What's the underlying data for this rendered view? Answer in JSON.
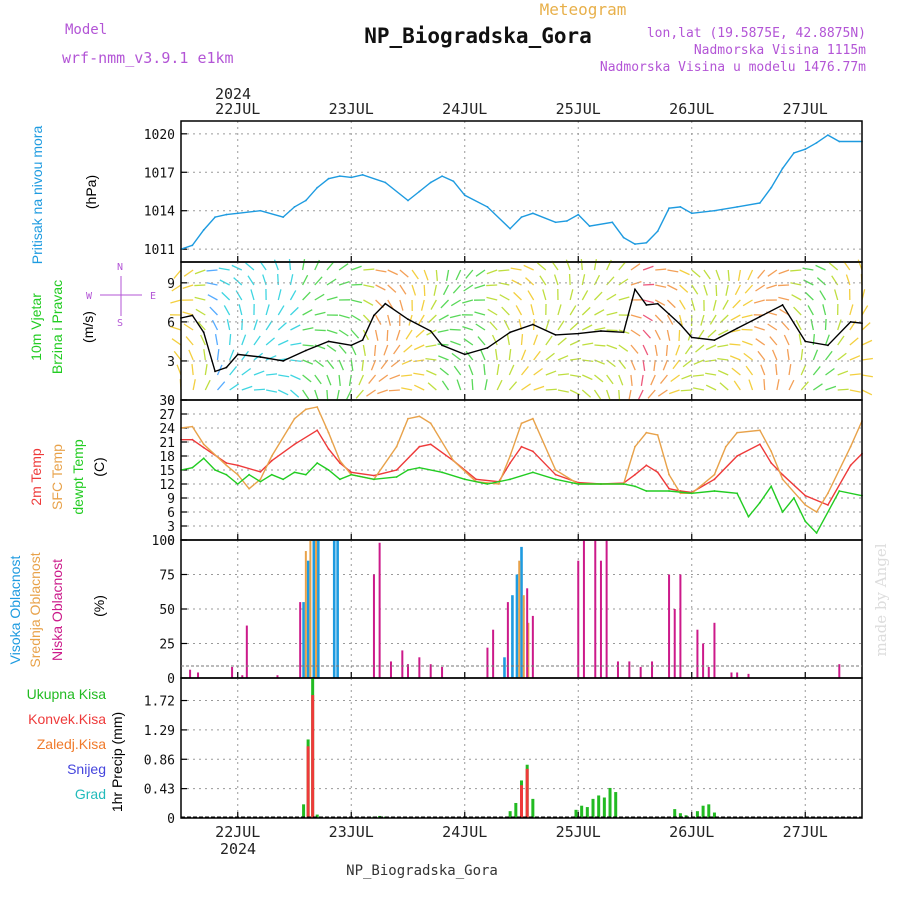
{
  "header": {
    "model_label": "Model",
    "model_name": "wrf-nmm_v3.9.1 e1km",
    "title": "Meteogram",
    "station": "NP_Biogradska_Gora",
    "coords": "lon,lat (19.5875E, 42.8875N)",
    "elevation": "Nadmorska Visina 1115m",
    "model_elevation": "Nadmorska Visina u modelu 1476.77m",
    "credit": "made by Angel",
    "footer_station": "NP_Biogradska_Gora"
  },
  "colors": {
    "pressure": "#1e9be0",
    "temp2m": "#ee3a3a",
    "sfc": "#e8a24a",
    "dew": "#22cc22",
    "high_cloud": "#1e9be0",
    "mid_cloud": "#e8a24a",
    "low_cloud": "#cc1a8a",
    "total_precip": "#22bb22",
    "conv_precip": "#ee3a3a",
    "freezing": "#f07a2a",
    "snow": "#4444dd",
    "hail": "#22bbbb",
    "header_purple": "#b355d6",
    "title_orange": "#e8b04a"
  },
  "chart_data": [
    {
      "type": "line",
      "panel": "pressure",
      "ylabel_lines": [
        "Pritisak na nivou mora",
        "(hPa)"
      ],
      "ylim": [
        1010,
        1021
      ],
      "yticks": [
        1011,
        1014,
        1017,
        1020
      ],
      "x_axis": {
        "year": "2024",
        "ticks": [
          "22JUL",
          "23JUL",
          "24JUL",
          "25JUL",
          "26JUL",
          "27JUL"
        ],
        "tick_day": [
          22,
          23,
          24,
          25,
          26,
          27
        ],
        "range_days": [
          21.5,
          27.5
        ]
      },
      "grid": true,
      "series": [
        {
          "color_key": "pressure",
          "x": [
            21.5,
            21.6,
            21.7,
            21.8,
            21.9,
            22.0,
            22.2,
            22.4,
            22.5,
            22.6,
            22.7,
            22.8,
            22.9,
            23.0,
            23.1,
            23.3,
            23.5,
            23.6,
            23.7,
            23.8,
            23.9,
            24.0,
            24.2,
            24.4,
            24.5,
            24.6,
            24.8,
            24.9,
            25.0,
            25.1,
            25.3,
            25.4,
            25.5,
            25.6,
            25.7,
            25.8,
            25.9,
            26.0,
            26.2,
            26.4,
            26.6,
            26.7,
            26.8,
            26.9,
            27.0,
            27.1,
            27.2,
            27.3,
            27.5
          ],
          "y": [
            1011,
            1011.3,
            1012.5,
            1013.5,
            1013.7,
            1013.8,
            1014,
            1013.5,
            1014.3,
            1014.8,
            1015.8,
            1016.5,
            1016.7,
            1016.6,
            1016.8,
            1016.2,
            1014.8,
            1015.5,
            1016.2,
            1016.7,
            1016.3,
            1015.2,
            1014.3,
            1012.6,
            1013.5,
            1013.8,
            1013.1,
            1013.2,
            1013.7,
            1012.8,
            1013.1,
            1011.9,
            1011.4,
            1011.5,
            1012.4,
            1014.2,
            1014.3,
            1013.8,
            1014,
            1014.3,
            1014.6,
            1015.8,
            1017.3,
            1018.5,
            1018.8,
            1019.3,
            1019.9,
            1019.4,
            1019.4
          ]
        }
      ]
    },
    {
      "type": "line",
      "panel": "wind",
      "ylabel_lines": [
        "10m Vjetar",
        "Brzina i Pravac",
        "(m/s)"
      ],
      "compass": [
        "N",
        "W",
        "E",
        "S"
      ],
      "ylim": [
        0,
        10.6
      ],
      "yticks": [
        0,
        3,
        6,
        9
      ],
      "grid": true,
      "series": [
        {
          "name": "",
          "color": "#000000",
          "x": [
            21.5,
            21.6,
            21.7,
            21.8,
            21.9,
            22.0,
            22.2,
            22.4,
            22.6,
            22.8,
            23.0,
            23.1,
            23.2,
            23.3,
            23.5,
            23.7,
            23.8,
            24.0,
            24.2,
            24.4,
            24.6,
            24.8,
            25.0,
            25.2,
            25.4,
            25.5,
            25.6,
            25.7,
            25.8,
            25.9,
            26.0,
            26.2,
            26.4,
            26.6,
            26.8,
            27.0,
            27.2,
            27.4,
            27.5
          ],
          "y": [
            6.3,
            6.5,
            5.2,
            2.2,
            2.5,
            3.5,
            3.3,
            3.0,
            3.8,
            4.5,
            4.2,
            4.6,
            6.5,
            7.4,
            6.2,
            5.3,
            4.2,
            3.5,
            4.0,
            5.2,
            5.8,
            5.0,
            5.1,
            5.3,
            5.2,
            8.5,
            7.3,
            7.4,
            6.6,
            5.8,
            4.8,
            4.6,
            5.5,
            6.4,
            7.3,
            4.5,
            4.2,
            6.0,
            5.9
          ]
        }
      ]
    },
    {
      "type": "line",
      "panel": "temperature",
      "ylabel_lines": [
        "2m Temp",
        "SFC Temp",
        "dewpt Temp",
        "(C)"
      ],
      "ylim": [
        0,
        30
      ],
      "yticks": [
        0,
        3,
        6,
        9,
        12,
        15,
        18,
        21,
        24,
        27,
        30
      ],
      "grid": true,
      "series": [
        {
          "name": "2m Temp",
          "color_key": "temp2m",
          "x": [
            21.5,
            21.6,
            21.7,
            21.9,
            22.0,
            22.2,
            22.3,
            22.5,
            22.7,
            22.8,
            22.9,
            23.0,
            23.2,
            23.4,
            23.6,
            23.7,
            23.9,
            24.1,
            24.3,
            24.4,
            24.5,
            24.6,
            24.8,
            25.0,
            25.2,
            25.4,
            25.5,
            25.6,
            25.7,
            25.8,
            25.9,
            26.0,
            26.2,
            26.4,
            26.6,
            26.7,
            26.8,
            27.0,
            27.2,
            27.4,
            27.5
          ],
          "y": [
            21.5,
            21.5,
            19.8,
            16.5,
            16.0,
            14.6,
            17.0,
            20.5,
            23.5,
            19.5,
            16.5,
            14.5,
            13.8,
            15.0,
            20.0,
            20.5,
            17.0,
            13.0,
            12.5,
            16.5,
            20.0,
            19.0,
            14.0,
            12.3,
            12.0,
            12.2,
            14.0,
            16.0,
            14.5,
            11.0,
            10.5,
            10.2,
            13.0,
            18.0,
            20.5,
            16.5,
            14.0,
            9.5,
            7.5,
            16.0,
            18.5
          ]
        },
        {
          "name": "SFC Temp",
          "color_key": "sfc",
          "x": [
            21.5,
            21.6,
            21.7,
            21.9,
            22.0,
            22.1,
            22.2,
            22.3,
            22.5,
            22.6,
            22.7,
            22.8,
            22.9,
            23.0,
            23.2,
            23.4,
            23.5,
            23.6,
            23.7,
            23.9,
            24.1,
            24.3,
            24.4,
            24.5,
            24.6,
            24.8,
            25.0,
            25.2,
            25.4,
            25.5,
            25.6,
            25.7,
            25.8,
            25.9,
            26.0,
            26.2,
            26.3,
            26.4,
            26.6,
            26.7,
            26.8,
            27.0,
            27.1,
            27.2,
            27.4,
            27.5
          ],
          "y": [
            24.0,
            24.3,
            20.5,
            16.0,
            14.0,
            11.0,
            13.0,
            18.0,
            26.0,
            28.0,
            28.5,
            23.0,
            17.0,
            14.0,
            13.0,
            20.0,
            26.0,
            26.5,
            25.0,
            17.0,
            12.5,
            12.0,
            18.0,
            25.0,
            26.0,
            15.0,
            12.0,
            12.0,
            12.0,
            20.0,
            23.0,
            22.5,
            14.0,
            10.0,
            10.0,
            14.0,
            20.0,
            23.0,
            23.5,
            19.0,
            13.0,
            7.5,
            6.0,
            10.0,
            20.0,
            25.5
          ]
        },
        {
          "name": "dewpt Temp",
          "color_key": "dew",
          "x": [
            21.5,
            21.6,
            21.7,
            21.8,
            21.9,
            22.0,
            22.1,
            22.2,
            22.3,
            22.4,
            22.5,
            22.6,
            22.7,
            22.8,
            22.9,
            23.0,
            23.2,
            23.4,
            23.5,
            23.6,
            23.8,
            24.0,
            24.2,
            24.4,
            24.6,
            24.8,
            25.0,
            25.2,
            25.4,
            25.5,
            25.6,
            25.8,
            26.0,
            26.2,
            26.4,
            26.5,
            26.6,
            26.7,
            26.8,
            26.9,
            27.0,
            27.1,
            27.3,
            27.5
          ],
          "y": [
            15.0,
            15.5,
            17.5,
            15.0,
            14.0,
            12.0,
            14.0,
            12.5,
            14.0,
            13.0,
            14.5,
            14.0,
            16.5,
            15.0,
            13.0,
            14.0,
            13.0,
            13.5,
            15.0,
            15.5,
            14.5,
            13.0,
            12.0,
            13.0,
            14.5,
            13.0,
            12.0,
            12.0,
            12.0,
            11.5,
            10.5,
            10.5,
            10.0,
            10.5,
            10.0,
            5.0,
            8.0,
            11.5,
            6.0,
            9.0,
            4.0,
            1.5,
            10.5,
            9.5
          ]
        }
      ]
    },
    {
      "type": "bar",
      "panel": "cloud",
      "ylabel_lines": [
        "Visoka Oblacnost",
        "Srednja Oblacnost",
        "Niska Oblacnost",
        "(%)"
      ],
      "ylim": [
        0,
        100
      ],
      "yticks": [
        0,
        25,
        50,
        75,
        100
      ],
      "grid": true,
      "series": [
        {
          "name": "Visoka Oblacnost",
          "color_key": "high_cloud",
          "x": [
            22.58,
            22.62,
            22.67,
            22.71,
            22.85,
            22.88,
            24.35,
            24.42,
            24.46,
            24.5
          ],
          "values": [
            55,
            85,
            100,
            100,
            100,
            100,
            15,
            60,
            75,
            95
          ]
        },
        {
          "name": "Srednja Oblacnost",
          "color_key": "mid_cloud",
          "x": [
            22.6,
            22.64,
            22.69,
            24.48,
            24.52,
            24.56
          ],
          "values": [
            92,
            100,
            100,
            85,
            60,
            40
          ]
        },
        {
          "name": "Niska Oblacnost",
          "color_key": "low_cloud",
          "x": [
            21.58,
            21.65,
            21.95,
            22.04,
            22.08,
            22.35,
            22.55,
            23.2,
            23.25,
            23.35,
            23.45,
            23.5,
            23.6,
            23.7,
            23.8,
            24.2,
            24.25,
            24.38,
            24.55,
            24.6,
            25.0,
            25.05,
            25.15,
            25.2,
            25.25,
            25.35,
            25.45,
            25.55,
            25.65,
            25.8,
            25.85,
            25.9,
            26.05,
            26.1,
            26.15,
            26.2,
            26.35,
            26.4,
            26.5,
            27.3
          ],
          "values": [
            6,
            4,
            8,
            2,
            38,
            2,
            55,
            75,
            98,
            12,
            20,
            10,
            15,
            10,
            8,
            22,
            35,
            55,
            65,
            45,
            85,
            100,
            100,
            85,
            100,
            12,
            12,
            8,
            12,
            75,
            50,
            75,
            35,
            25,
            8,
            40,
            4,
            4,
            3,
            10
          ]
        }
      ]
    },
    {
      "type": "bar",
      "panel": "precip",
      "ylabel_lines": [
        "1hr Precip (mm)"
      ],
      "legend": [
        "Ukupna Kisa",
        "Konvek.Kisa",
        "Zaledj.Kisa",
        "Snijeg",
        "Grad"
      ],
      "ylim": [
        0,
        2.05
      ],
      "yticks": [
        0,
        0.43,
        0.86,
        1.29,
        1.72
      ],
      "grid": true,
      "series": [
        {
          "name": "Ukupna Kisa",
          "color_key": "total_precip",
          "x": [
            22.58,
            22.62,
            22.66,
            22.7,
            23.2,
            23.25,
            23.3,
            24.4,
            24.45,
            24.5,
            24.55,
            24.6,
            24.98,
            25.03,
            25.08,
            25.13,
            25.18,
            25.23,
            25.28,
            25.33,
            25.85,
            25.9,
            25.95,
            26.05,
            26.1,
            26.15,
            26.2
          ],
          "values": [
            0.2,
            1.15,
            2.05,
            0.05,
            0.02,
            0.03,
            0.02,
            0.1,
            0.22,
            0.55,
            0.78,
            0.28,
            0.12,
            0.18,
            0.16,
            0.28,
            0.33,
            0.3,
            0.44,
            0.38,
            0.13,
            0.07,
            0.04,
            0.1,
            0.18,
            0.2,
            0.08
          ]
        },
        {
          "name": "Konvek.Kisa",
          "color_key": "conv_precip",
          "x": [
            22.62,
            22.66,
            24.5,
            24.55
          ],
          "values": [
            1.05,
            1.8,
            0.48,
            0.72
          ]
        }
      ]
    }
  ]
}
